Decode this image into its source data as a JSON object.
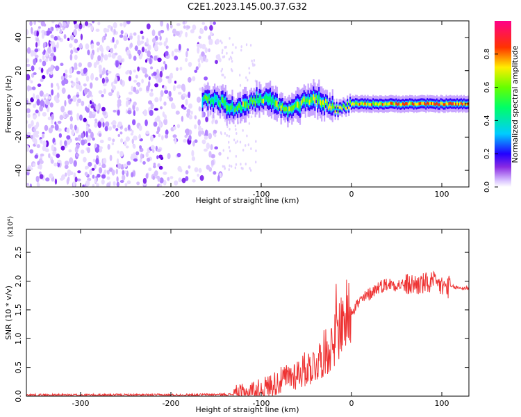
{
  "title": "C2E1.2023.145.00.37.G32",
  "chart_data": [
    {
      "type": "heatmap",
      "xlabel": "Height of straight line (km)",
      "ylabel": "Frequency (Hz)",
      "xlim": [
        -360,
        130
      ],
      "ylim": [
        -50,
        50
      ],
      "xticks": [
        -300,
        -200,
        -100,
        0,
        100
      ],
      "yticks": [
        -40,
        -20,
        0,
        20,
        40
      ],
      "colorbar": {
        "label": "Normalized spectral amplitude",
        "range": [
          0,
          1
        ],
        "ticks": [
          0.0,
          0.2,
          0.4,
          0.6,
          0.8
        ],
        "tick_labels": [
          "0.0",
          "0.2",
          "0.4",
          "0.6",
          "0.8"
        ],
        "colormap": [
          "#ffffff",
          "#cc99ff",
          "#6600ff",
          "#0000ff",
          "#00ffff",
          "#00ff00",
          "#ffff00",
          "#ff0000",
          "#ff00aa"
        ]
      },
      "features": [
        {
          "region": "noise",
          "x_range": [
            -360,
            -145
          ],
          "y_range": [
            -50,
            50
          ],
          "amplitude": 0.15
        },
        {
          "region": "signal_line",
          "x_range": [
            -165,
            130
          ],
          "center_frequency": 0,
          "amplitude_start": 0.55,
          "amplitude_end": 0.9
        }
      ]
    },
    {
      "type": "line",
      "xlabel": "Height of straight line (km)",
      "ylabel": "SNR (10 * v/v)",
      "y_multiplier": "(x10⁴)",
      "xlim": [
        -360,
        130
      ],
      "ylim": [
        0,
        2.9
      ],
      "xticks": [
        -300,
        -200,
        -100,
        0,
        100
      ],
      "yticks": [
        0.0,
        0.5,
        1.0,
        1.5,
        2.0,
        2.5
      ],
      "ytick_labels": [
        "0.0",
        "0.5",
        "1.0",
        "1.5",
        "2.0",
        "2.5"
      ],
      "color": "#ee3333",
      "x": [
        -360,
        -300,
        -200,
        -130,
        -120,
        -100,
        -80,
        -60,
        -40,
        -30,
        -20,
        -15,
        -10,
        0,
        10,
        20,
        30,
        40,
        60,
        80,
        90,
        100,
        110,
        120,
        130
      ],
      "y": [
        0.02,
        0.02,
        0.02,
        0.03,
        0.05,
        0.12,
        0.25,
        0.4,
        0.55,
        0.75,
        0.9,
        1.15,
        1.3,
        1.5,
        1.65,
        1.78,
        1.9,
        1.95,
        1.93,
        1.95,
        1.97,
        1.9,
        1.9,
        1.88,
        1.88
      ]
    }
  ]
}
